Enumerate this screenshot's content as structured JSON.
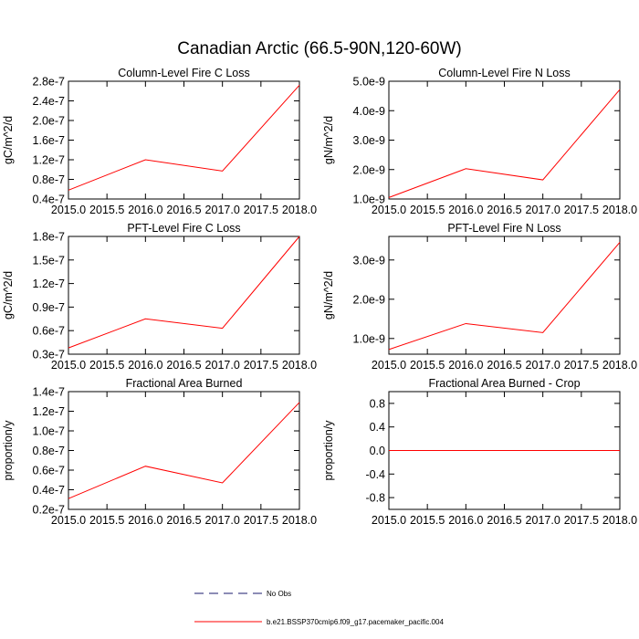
{
  "title": "Canadian Arctic (66.5-90N,120-60W)",
  "colors": {
    "series": "#ff0000",
    "obs": "#1a1a6e",
    "frame": "#000000"
  },
  "legend": [
    {
      "label": "No Obs",
      "style": "dashed",
      "color": "#1a1a6e"
    },
    {
      "label": "b.e21.BSSP370cmip6.f09_g17.pacemaker_pacific.004",
      "style": "solid",
      "color": "#ff0000"
    }
  ],
  "chart_data": [
    {
      "type": "line",
      "title": "Column-Level Fire C Loss",
      "ylabel": "gC/m^2/d",
      "xlabel": "",
      "xlim": [
        2015.0,
        2018.0
      ],
      "ylim": [
        4e-08,
        2.8e-07
      ],
      "xticks": [
        2015.0,
        2015.5,
        2016.0,
        2016.5,
        2017.0,
        2017.5,
        2018.0
      ],
      "xtick_labels": [
        "2015.0",
        "2015.5",
        "2016.0",
        "2016.5",
        "2017.0",
        "2017.5",
        "2018.0"
      ],
      "yticks": [
        4e-08,
        8e-08,
        1.2e-07,
        1.6e-07,
        2e-07,
        2.4e-07,
        2.8e-07
      ],
      "ytick_labels": [
        "0.4e-7",
        "0.8e-7",
        "1.2e-7",
        "1.6e-7",
        "2.0e-7",
        "2.4e-7",
        "2.8e-7"
      ],
      "x": [
        2015,
        2016,
        2017,
        2018
      ],
      "series": [
        {
          "values": [
            5.8e-08,
            1.2e-07,
            9.7e-08,
            2.72e-07
          ]
        }
      ]
    },
    {
      "type": "line",
      "title": "Column-Level Fire N Loss",
      "ylabel": "gN/m^2/d",
      "xlabel": "",
      "xlim": [
        2015.0,
        2018.0
      ],
      "ylim": [
        1e-09,
        5e-09
      ],
      "xticks": [
        2015.0,
        2015.5,
        2016.0,
        2016.5,
        2017.0,
        2017.5,
        2018.0
      ],
      "xtick_labels": [
        "2015.0",
        "2015.5",
        "2016.0",
        "2016.5",
        "2017.0",
        "2017.5",
        "2018.0"
      ],
      "yticks": [
        1e-09,
        2e-09,
        3e-09,
        4e-09,
        5e-09
      ],
      "ytick_labels": [
        "1.0e-9",
        "2.0e-9",
        "3.0e-9",
        "4.0e-9",
        "5.0e-9"
      ],
      "x": [
        2015,
        2016,
        2017,
        2018
      ],
      "series": [
        {
          "values": [
            1.05e-09,
            2.03e-09,
            1.65e-09,
            4.72e-09
          ]
        }
      ]
    },
    {
      "type": "line",
      "title": "PFT-Level Fire C Loss",
      "ylabel": "gC/m^2/d",
      "xlabel": "",
      "xlim": [
        2015.0,
        2018.0
      ],
      "ylim": [
        3e-08,
        1.8e-07
      ],
      "xticks": [
        2015.0,
        2015.5,
        2016.0,
        2016.5,
        2017.0,
        2017.5,
        2018.0
      ],
      "xtick_labels": [
        "2015.0",
        "2015.5",
        "2016.0",
        "2016.5",
        "2017.0",
        "2017.5",
        "2018.0"
      ],
      "yticks": [
        3e-08,
        6e-08,
        9e-08,
        1.2e-07,
        1.5e-07,
        1.8e-07
      ],
      "ytick_labels": [
        "0.3e-7",
        "0.6e-7",
        "0.9e-7",
        "1.2e-7",
        "1.5e-7",
        "1.8e-7"
      ],
      "x": [
        2015,
        2016,
        2017,
        2018
      ],
      "series": [
        {
          "values": [
            3.8e-08,
            7.5e-08,
            6.3e-08,
            1.8e-07
          ]
        }
      ]
    },
    {
      "type": "line",
      "title": "PFT-Level Fire N Loss",
      "ylabel": "gN/m^2/d",
      "xlabel": "",
      "xlim": [
        2015.0,
        2018.0
      ],
      "ylim": [
        6e-10,
        3.6e-09
      ],
      "xticks": [
        2015.0,
        2015.5,
        2016.0,
        2016.5,
        2017.0,
        2017.5,
        2018.0
      ],
      "xtick_labels": [
        "2015.0",
        "2015.5",
        "2016.0",
        "2016.5",
        "2017.0",
        "2017.5",
        "2018.0"
      ],
      "yticks": [
        1e-09,
        2e-09,
        3e-09
      ],
      "ytick_labels": [
        "1.0e-9",
        "2.0e-9",
        "3.0e-9"
      ],
      "x": [
        2015,
        2016,
        2017,
        2018
      ],
      "series": [
        {
          "values": [
            7.2e-10,
            1.38e-09,
            1.15e-09,
            3.45e-09
          ]
        }
      ]
    },
    {
      "type": "line",
      "title": "Fractional Area Burned",
      "ylabel": "proportion/y",
      "xlabel": "",
      "xlim": [
        2015.0,
        2018.0
      ],
      "ylim": [
        2e-08,
        1.4e-07
      ],
      "xticks": [
        2015.0,
        2015.5,
        2016.0,
        2016.5,
        2017.0,
        2017.5,
        2018.0
      ],
      "xtick_labels": [
        "2015.0",
        "2015.5",
        "2016.0",
        "2016.5",
        "2017.0",
        "2017.5",
        "2018.0"
      ],
      "yticks": [
        2e-08,
        4e-08,
        6e-08,
        8e-08,
        1e-07,
        1.2e-07,
        1.4e-07
      ],
      "ytick_labels": [
        "0.2e-7",
        "0.4e-7",
        "0.6e-7",
        "0.8e-7",
        "1.0e-7",
        "1.2e-7",
        "1.4e-7"
      ],
      "x": [
        2015,
        2016,
        2017,
        2018
      ],
      "series": [
        {
          "values": [
            3.1e-08,
            6.4e-08,
            4.7e-08,
            1.29e-07
          ]
        }
      ]
    },
    {
      "type": "line",
      "title": "Fractional Area Burned - Crop",
      "ylabel": "proportion/y",
      "xlabel": "",
      "xlim": [
        2015.0,
        2018.0
      ],
      "ylim": [
        -1.0,
        1.0
      ],
      "xticks": [
        2015.0,
        2015.5,
        2016.0,
        2016.5,
        2017.0,
        2017.5,
        2018.0
      ],
      "xtick_labels": [
        "2015.0",
        "2015.5",
        "2016.0",
        "2016.5",
        "2017.0",
        "2017.5",
        "2018.0"
      ],
      "yticks": [
        -0.8,
        -0.4,
        0.0,
        0.4,
        0.8
      ],
      "ytick_labels": [
        "-0.8",
        "-0.4",
        "0.0",
        "0.4",
        "0.8"
      ],
      "x": [
        2015,
        2016,
        2017,
        2018
      ],
      "series": [
        {
          "values": [
            0.0,
            0.0,
            0.0,
            0.0
          ]
        }
      ]
    }
  ]
}
